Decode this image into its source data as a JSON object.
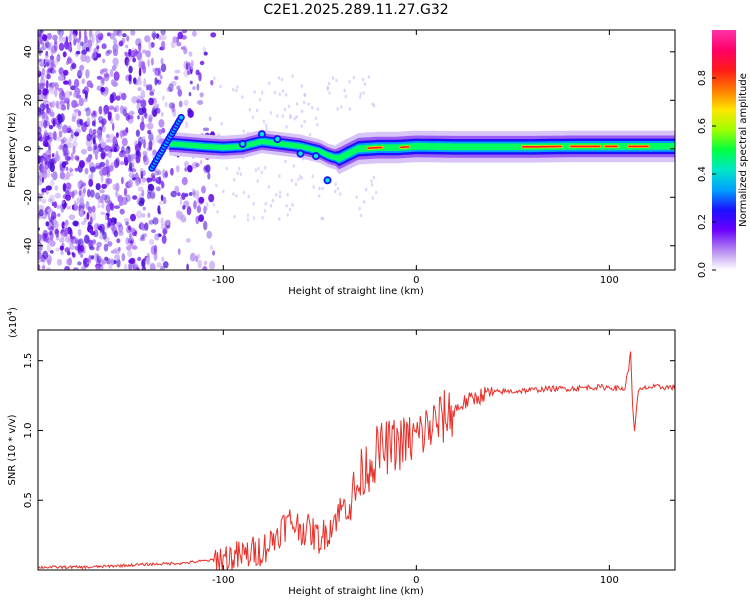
{
  "figure_title": "C2E1.2025.289.11.27.G32",
  "chart_data": [
    {
      "type": "heatmap",
      "title": "C2E1.2025.289.11.27.G32",
      "xlabel": "Height of straight line (km)",
      "ylabel": "Frequency (Hz)",
      "xlim": [
        -196,
        134
      ],
      "ylim": [
        -50,
        49
      ],
      "x_ticks": [
        -100,
        0,
        100
      ],
      "x_tick_labels": [
        "-100",
        "0",
        "100"
      ],
      "y_ticks": [
        -40,
        -20,
        0,
        20,
        40
      ],
      "y_tick_labels": [
        "-40",
        "-20",
        "0",
        "20",
        "40"
      ],
      "colorbar": {
        "label": "Normalized spectral amplitude",
        "range": [
          0,
          1
        ],
        "ticks": [
          0.0,
          0.2,
          0.4,
          0.6,
          0.8
        ],
        "tick_labels": [
          "0.0",
          "0.2",
          "0.4",
          "0.6",
          "0.8"
        ],
        "colormap": [
          "#ffffff",
          "#b487f0",
          "#6a00ff",
          "#1a10ff",
          "#00a0ff",
          "#00e8c8",
          "#00ff40",
          "#a0ff00",
          "#ffe600",
          "#ff7a00",
          "#ff1a1a",
          "#ff0066",
          "#ff33aa"
        ]
      },
      "ridge": {
        "name": "dominant frequency trace",
        "x": [
          -125,
          -110,
          -100,
          -90,
          -80,
          -70,
          -60,
          -50,
          -45,
          -40,
          -35,
          -30,
          -20,
          -10,
          0,
          20,
          40,
          60,
          80,
          100,
          120,
          134
        ],
        "y": [
          2,
          1,
          0.5,
          1,
          3,
          2,
          1,
          -1,
          -3,
          -4,
          -2,
          0,
          0.5,
          0.5,
          1,
          0.8,
          0.8,
          0.8,
          1,
          1,
          1,
          1
        ]
      },
      "noise_region_x": [
        -196,
        -105
      ]
    },
    {
      "type": "line",
      "xlabel": "Height of straight line (km)",
      "ylabel": "SNR (10 * v/v)",
      "scale_label": "(x10",
      "scale_exponent": "4",
      "xlim": [
        -196,
        134
      ],
      "ylim": [
        0,
        1.72
      ],
      "x_ticks": [
        -100,
        0,
        100
      ],
      "x_tick_labels": [
        "-100",
        "0",
        "100"
      ],
      "y_ticks": [
        0.5,
        1.0,
        1.5
      ],
      "y_tick_labels": [
        "0.5",
        "1.0",
        "1.5"
      ],
      "series": [
        {
          "name": "SNR",
          "color": "#e8302a",
          "x": [
            -196,
            -170,
            -140,
            -120,
            -100,
            -90,
            -80,
            -75,
            -70,
            -65,
            -60,
            -55,
            -50,
            -45,
            -40,
            -35,
            -32,
            -30,
            -28,
            -25,
            -22,
            -20,
            -15,
            -10,
            -5,
            0,
            5,
            10,
            15,
            20,
            25,
            30,
            35,
            40,
            45,
            50,
            60,
            70,
            80,
            90,
            95,
            100,
            105,
            108,
            110,
            111,
            112,
            113,
            115,
            118,
            120,
            125,
            130,
            134
          ],
          "y": [
            0.02,
            0.02,
            0.04,
            0.05,
            0.08,
            0.1,
            0.15,
            0.2,
            0.3,
            0.35,
            0.3,
            0.28,
            0.22,
            0.3,
            0.42,
            0.48,
            0.55,
            0.6,
            0.7,
            0.75,
            0.8,
            0.85,
            0.88,
            0.9,
            0.92,
            0.95,
            1.0,
            1.05,
            1.1,
            1.15,
            1.2,
            1.23,
            1.26,
            1.27,
            1.28,
            1.28,
            1.29,
            1.3,
            1.3,
            1.31,
            1.31,
            1.31,
            1.3,
            1.3,
            1.45,
            1.55,
            1.2,
            1.0,
            1.28,
            1.3,
            1.31,
            1.31,
            1.31,
            1.31
          ]
        }
      ]
    }
  ]
}
